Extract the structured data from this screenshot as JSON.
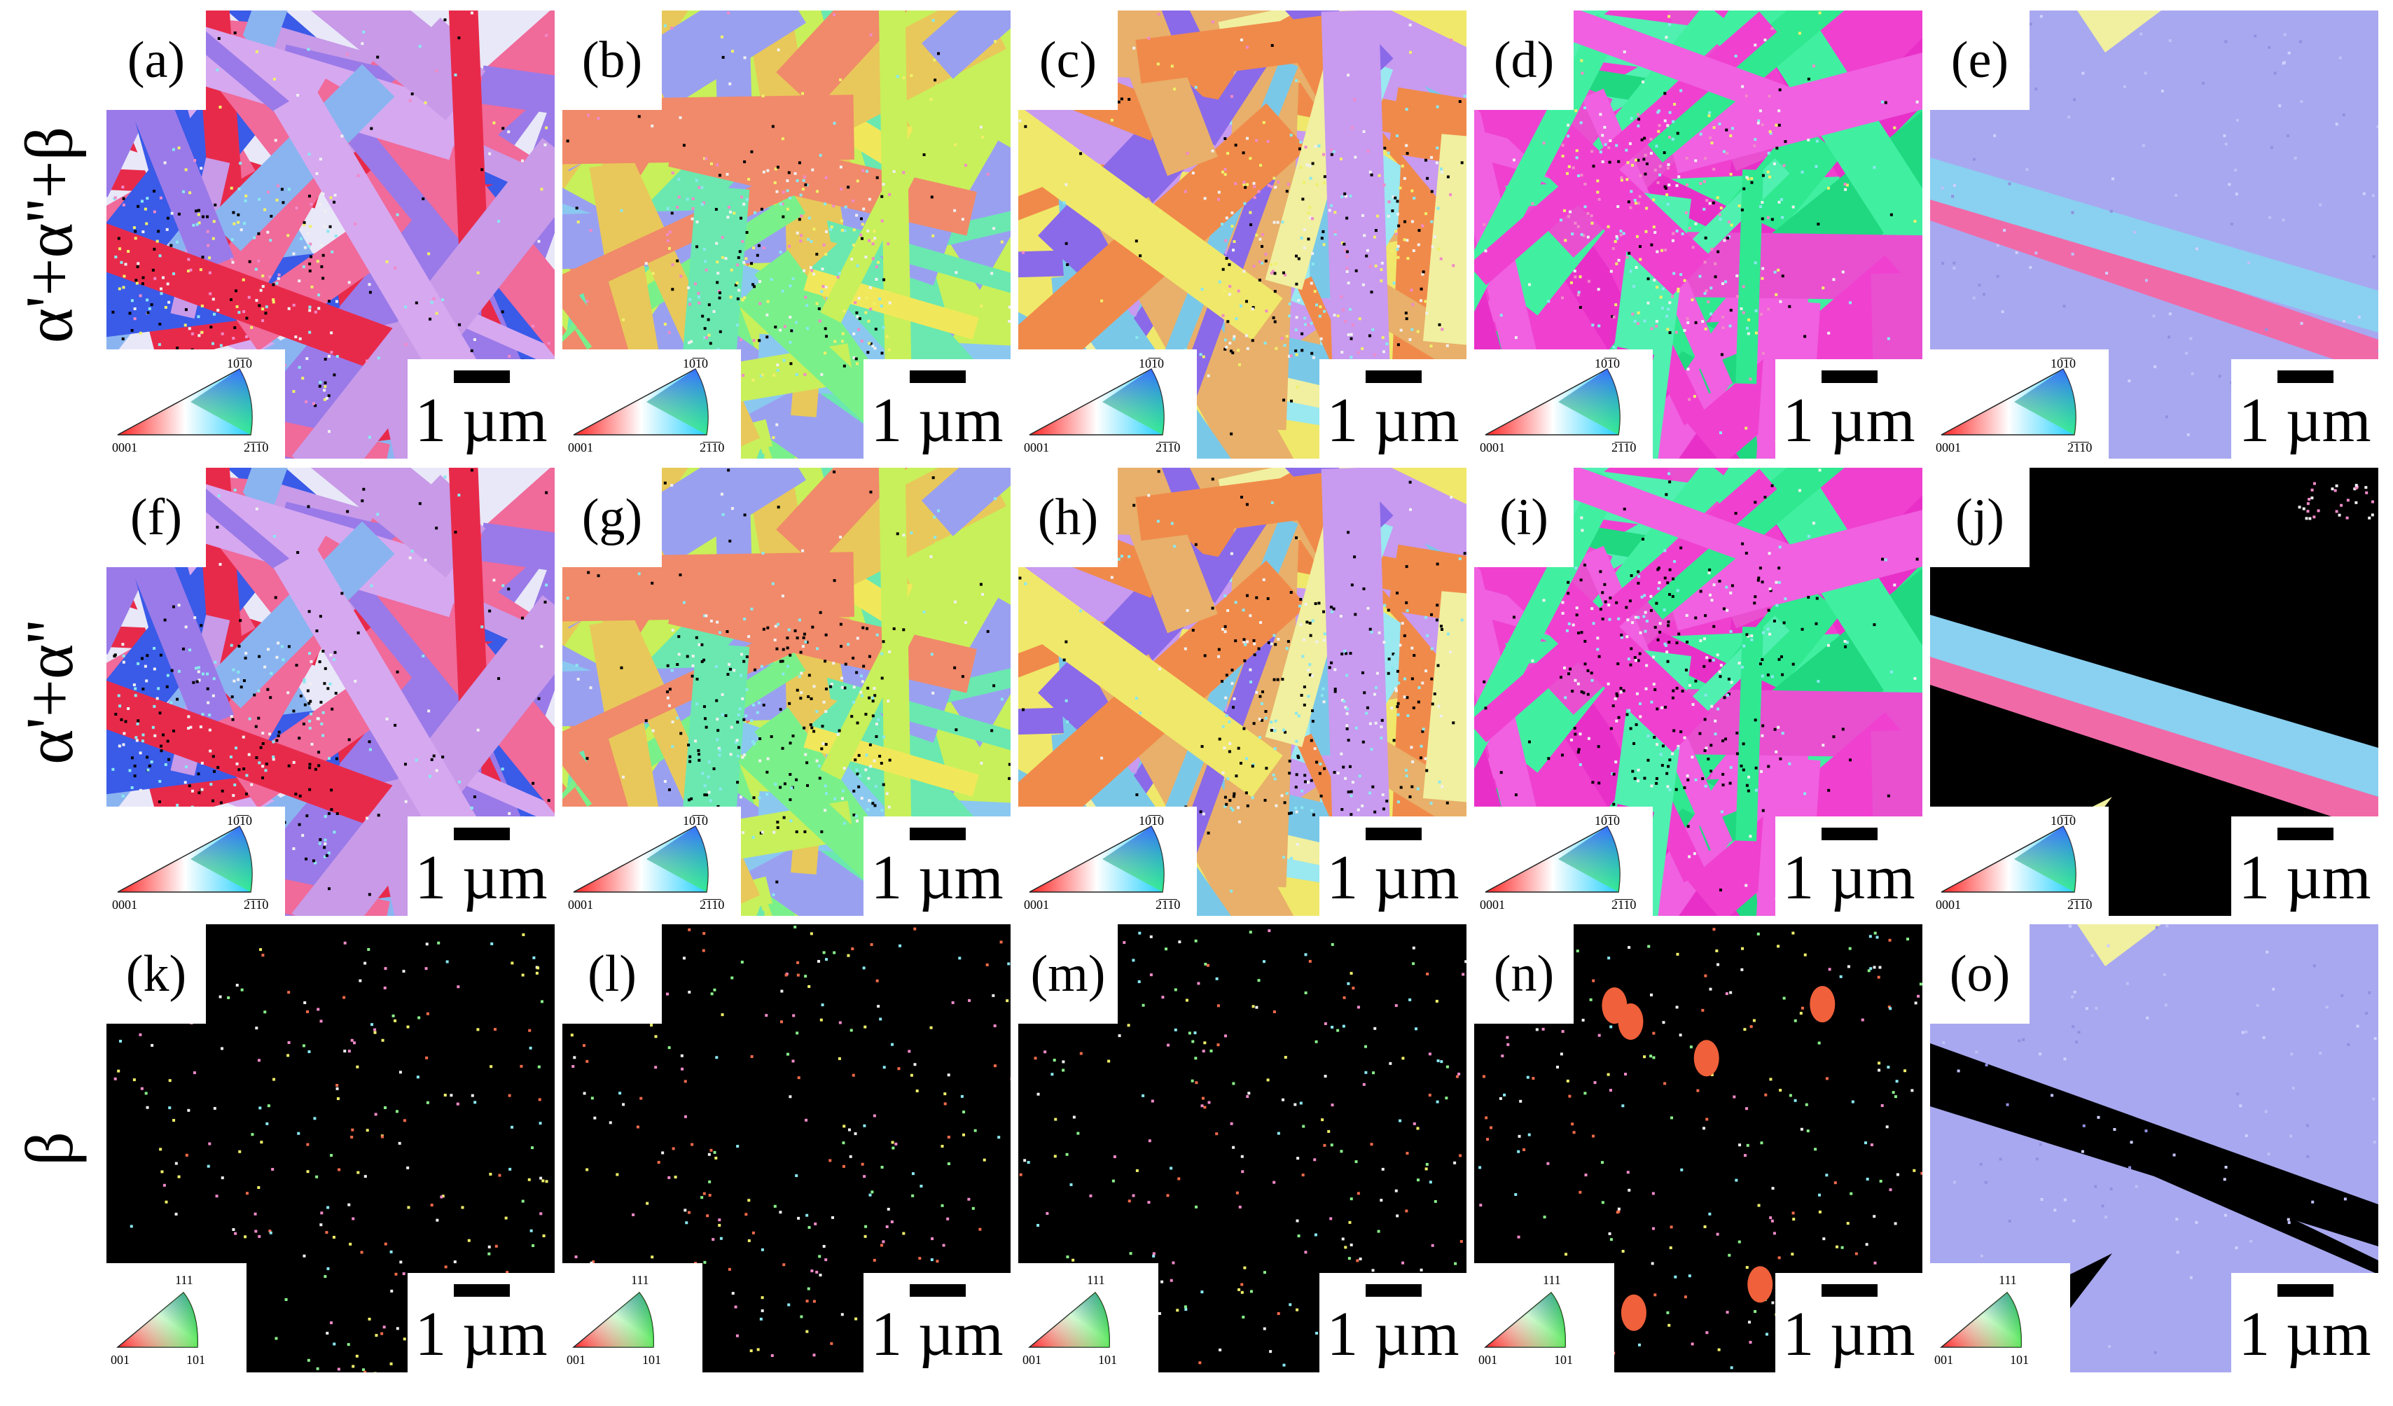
{
  "row_labels": [
    "α'+α''+β",
    "α'+α''",
    "β"
  ],
  "panel_letters": [
    "(a)",
    "(b)",
    "(c)",
    "(d)",
    "(e)",
    "(f)",
    "(g)",
    "(h)",
    "(i)",
    "(j)",
    "(k)",
    "(l)",
    "(m)",
    "(n)",
    "(o)"
  ],
  "scale_bar_label": "1 µm",
  "hex_legend": {
    "top": "10̅1̅0",
    "left": "0001",
    "right": "2̅1̅1̅0"
  },
  "cubic_legend": {
    "top": "111",
    "left": "001",
    "right": "101"
  },
  "colors": {
    "background": "#ffffff",
    "unindexed": "#000000"
  }
}
